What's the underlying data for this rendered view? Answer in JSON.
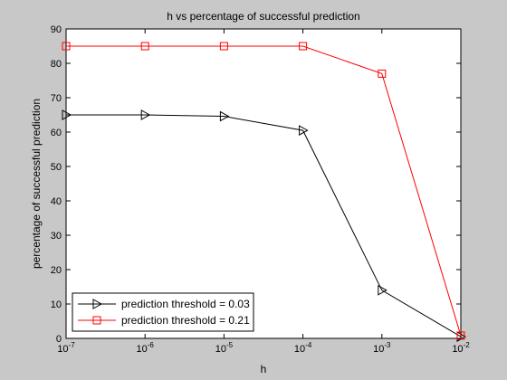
{
  "chart_data": {
    "type": "line",
    "title": "h vs percentage of successful prediction",
    "xlabel": "h",
    "ylabel": "percentage of successful prediction",
    "x_scale": "log",
    "x": [
      1e-07,
      1e-06,
      1e-05,
      0.0001,
      0.001,
      0.01
    ],
    "xlim": [
      1e-07,
      0.01
    ],
    "ylim": [
      0,
      90
    ],
    "x_ticks": [
      {
        "base": "10",
        "exp": "-7"
      },
      {
        "base": "10",
        "exp": "-6"
      },
      {
        "base": "10",
        "exp": "-5"
      },
      {
        "base": "10",
        "exp": "-4"
      },
      {
        "base": "10",
        "exp": "-3"
      },
      {
        "base": "10",
        "exp": "-2"
      }
    ],
    "y_ticks": [
      "0",
      "10",
      "20",
      "30",
      "40",
      "50",
      "60",
      "70",
      "80",
      "90"
    ],
    "grid": false,
    "legend_position": "bottom-left",
    "series": [
      {
        "name": "prediction threshold = 0.03",
        "values": [
          65,
          65,
          64.6,
          60.5,
          14,
          0.5
        ],
        "color": "#000000",
        "marker": "triangle-right"
      },
      {
        "name": "prediction threshold = 0.21",
        "values": [
          85,
          85,
          85,
          85,
          77,
          0.8
        ],
        "color": "#ff0000",
        "marker": "square"
      }
    ]
  }
}
